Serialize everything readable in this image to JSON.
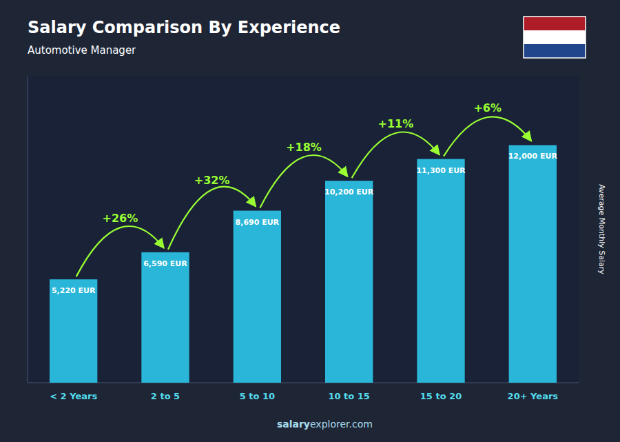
{
  "chart_data": {
    "type": "bar",
    "title": "Salary Comparison By Experience",
    "subtitle": "Automotive Manager",
    "ylabel": "Average Monthly Salary",
    "categories": [
      "< 2 Years",
      "2 to 5",
      "5 to 10",
      "10 to 15",
      "15 to 20",
      "20+ Years"
    ],
    "values": [
      5220,
      6590,
      8690,
      10200,
      11300,
      12000
    ],
    "value_labels": [
      "5,220 EUR",
      "6,590 EUR",
      "8,690 EUR",
      "10,200 EUR",
      "11,300 EUR",
      "12,000 EUR"
    ],
    "data_labels": true,
    "change_labels": [
      "+26%",
      "+32%",
      "+18%",
      "+11%",
      "+6%"
    ],
    "annotations": [
      "salary",
      "explorer.com"
    ],
    "color": "#29b6d8",
    "ylim": [
      0,
      15500
    ],
    "yticks": [],
    "tick_labels": "x",
    "grid": false
  }
}
